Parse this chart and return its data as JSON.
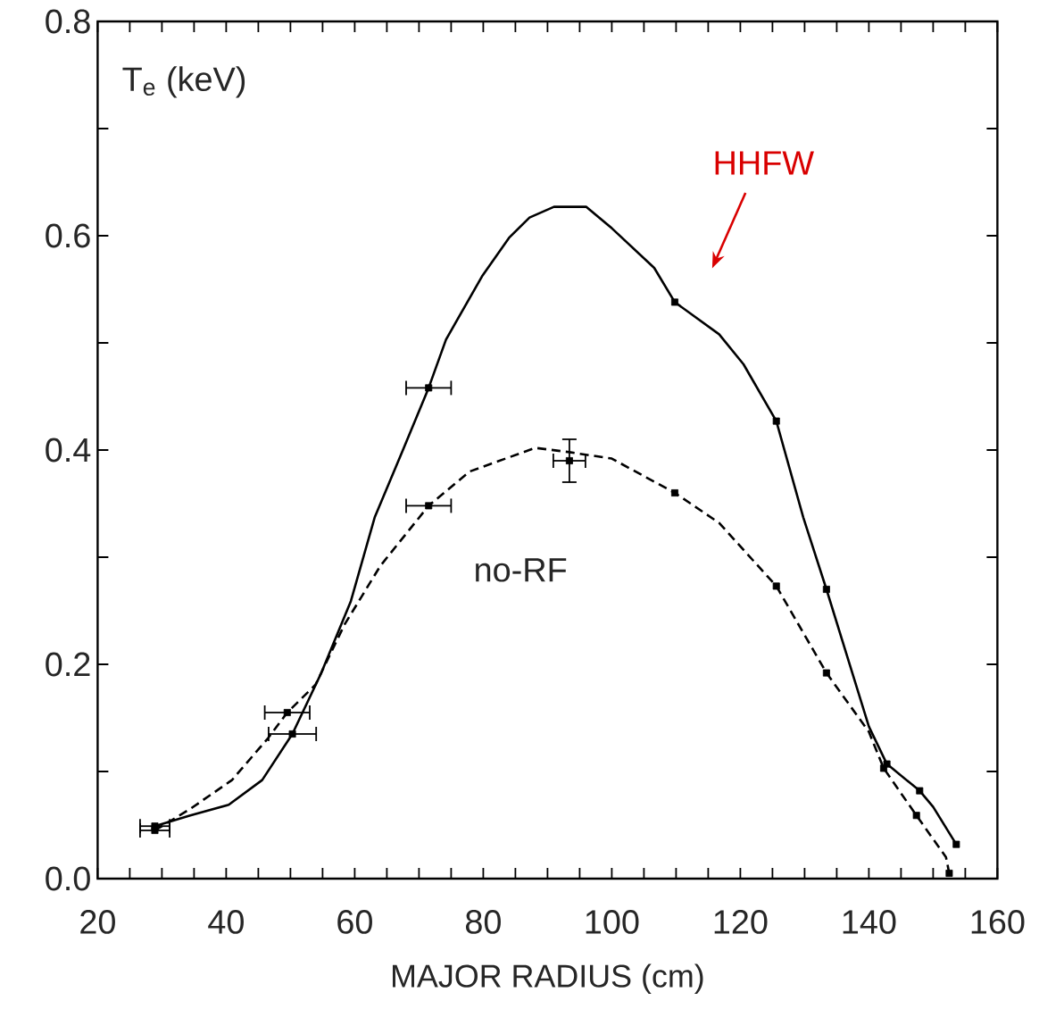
{
  "chart_data": {
    "type": "line",
    "xlabel": "MAJOR RADIUS (cm)",
    "ylabel": "T$_{e}$ (keV)",
    "xlim": [
      20,
      160
    ],
    "ylim": [
      0,
      0.8
    ],
    "xticks": [
      20,
      {
        "value": 25,
        "label": null
      },
      {
        "value": 30,
        "label": null
      },
      {
        "value": 35,
        "label": null
      },
      40,
      {
        "value": 45,
        "label": null
      },
      {
        "value": 50,
        "label": null
      },
      {
        "value": 55,
        "label": null
      },
      60,
      {
        "value": 65,
        "label": null
      },
      {
        "value": 70,
        "label": null
      },
      {
        "value": 75,
        "label": null
      },
      80,
      {
        "value": 85,
        "label": null
      },
      {
        "value": 90,
        "label": null
      },
      {
        "value": 95,
        "label": null
      },
      100,
      {
        "value": 105,
        "label": null
      },
      {
        "value": 110,
        "label": null
      },
      {
        "value": 115,
        "label": null
      },
      120,
      {
        "value": 125,
        "label": null
      },
      {
        "value": 130,
        "label": null
      },
      {
        "value": 135,
        "label": null
      },
      140,
      {
        "value": 145,
        "label": null
      },
      {
        "value": 150,
        "label": null
      },
      {
        "value": 155,
        "label": null
      },
      160
    ],
    "yticks": [
      {
        "value": 0,
        "label": "0.0"
      },
      {
        "value": 0.1,
        "label": null
      },
      {
        "value": 0.2,
        "label": "0.2"
      },
      {
        "value": 0.3,
        "label": null
      },
      {
        "value": 0.4,
        "label": "0.4"
      },
      {
        "value": 0.5,
        "label": null
      },
      {
        "value": 0.6,
        "label": "0.6"
      },
      {
        "value": 0.7,
        "label": null
      },
      {
        "value": 0.8,
        "label": "0.8"
      }
    ],
    "series": [
      {
        "name": "HHFW",
        "color": "#000000",
        "line_style": "solid",
        "marker": "none",
        "x": [
          28.9,
          34.4,
          40.4,
          45.6,
          50.3,
          54.8,
          59.4,
          63.1,
          67.5,
          71.5,
          74.2,
          79.8,
          84,
          87.2,
          91,
          96,
          100,
          106.6,
          109.8,
          116.7,
          120.5,
          125.6,
          129.8,
          133.4,
          140,
          142.8,
          147.9,
          150,
          153.6
        ],
        "values": [
          0.049,
          0.059,
          0.069,
          0.092,
          0.135,
          0.192,
          0.259,
          0.337,
          0.4,
          0.458,
          0.503,
          0.562,
          0.598,
          0.617,
          0.627,
          0.627,
          0.607,
          0.57,
          0.538,
          0.508,
          0.48,
          0.427,
          0.337,
          0.27,
          0.142,
          0.107,
          0.082,
          0.067,
          0.032
        ]
      },
      {
        "name": "no-RF",
        "color": "#000000",
        "line_style": "dashed",
        "marker": "none",
        "x": [
          28.9,
          34.4,
          40.9,
          46.5,
          49.5,
          53.9,
          58.4,
          64,
          71.5,
          77.9,
          88.1,
          93.4,
          100,
          109.8,
          116.7,
          125.6,
          133.4,
          140,
          142.3,
          147.4,
          152,
          152.5
        ],
        "values": [
          0.045,
          0.065,
          0.092,
          0.131,
          0.155,
          0.181,
          0.237,
          0.292,
          0.348,
          0.38,
          0.402,
          0.398,
          0.392,
          0.36,
          0.332,
          0.273,
          0.192,
          0.137,
          0.103,
          0.059,
          0.02,
          0.005
        ]
      },
      {
        "type": "scatter",
        "color": "#000000",
        "marker": "square",
        "x": [
          28.9,
          50.3,
          71.5,
          109.8,
          125.6,
          133.4,
          142.8,
          147.9,
          153.6
        ],
        "values": [
          0.049,
          0.135,
          0.458,
          0.538,
          0.427,
          0.27,
          0.107,
          0.082,
          0.032
        ],
        "xerrors": [
          2.3,
          3.7,
          3.5,
          null,
          null,
          null,
          null,
          null,
          null
        ]
      },
      {
        "type": "scatter",
        "color": "#000000",
        "marker": "square",
        "x": [
          28.9,
          49.5,
          71.5,
          93.4,
          109.8,
          125.6,
          133.4,
          142.3,
          147.4,
          152.5
        ],
        "values": [
          0.045,
          0.155,
          0.348,
          0.39,
          0.36,
          0.273,
          0.192,
          0.103,
          0.059,
          0.005
        ],
        "xerrors": [
          2.3,
          3.5,
          3.5,
          2.5,
          null,
          null,
          null,
          null,
          null,
          null
        ],
        "errors": [
          null,
          null,
          null,
          0.02,
          null,
          null,
          null,
          null,
          null,
          null
        ]
      }
    ]
  }
}
